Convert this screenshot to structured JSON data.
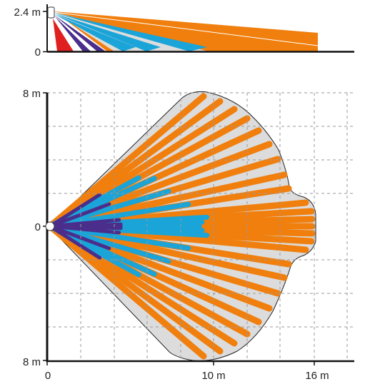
{
  "colors": {
    "orange": "#f07f0e",
    "blue": "#1aa4d8",
    "purple": "#4b2e8c",
    "red": "#e02020",
    "zone_fill": "#dcdcdc",
    "axis": "#111111",
    "grid": "#9a9a9a"
  },
  "side_view": {
    "height_label": "2.4 m",
    "floor_label": "0"
  },
  "top_view": {
    "y_top_label": "8 m",
    "y_mid_label": "0",
    "y_bottom_label": "8 m",
    "x_labels": [
      "0",
      "10 m",
      "16 m"
    ]
  }
}
